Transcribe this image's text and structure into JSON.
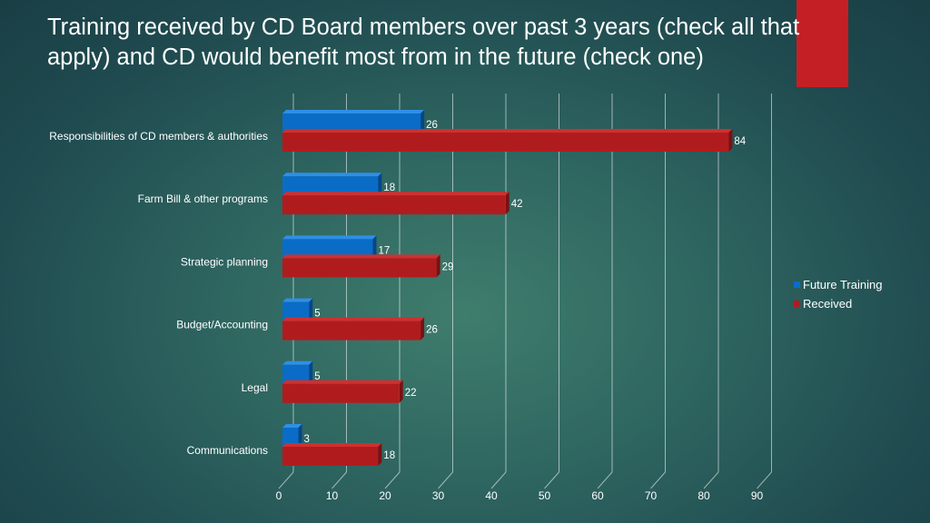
{
  "title_line1": "Training received by CD Board members over past 3 years (check all that",
  "title_line2": "apply) and CD would benefit most from in the future (check one)",
  "colors": {
    "future": "#0a6cc6",
    "future_top": "#2e8fe6",
    "future_side": "#05468a",
    "received": "#b01c1e",
    "received_top": "#cf3030",
    "received_side": "#7c1012",
    "accent": "#c41f24"
  },
  "chart_data": {
    "type": "bar",
    "orientation": "horizontal",
    "style": "3d-clustered",
    "title": "Training received by CD Board members over past 3 years (check all that apply) and CD would benefit most from in the future (check one)",
    "categories": [
      "Responsibilities of CD members & authorities",
      "Farm Bill & other programs",
      "Strategic planning",
      "Budget/Accounting",
      "Legal",
      "Communications"
    ],
    "series": [
      {
        "name": "Future Training",
        "values": [
          26,
          18,
          17,
          5,
          5,
          3
        ]
      },
      {
        "name": "Received",
        "values": [
          84,
          42,
          29,
          26,
          22,
          18
        ]
      }
    ],
    "xlim": [
      0,
      90
    ],
    "xticks": [
      0,
      10,
      20,
      30,
      40,
      50,
      60,
      70,
      80,
      90
    ],
    "grid": true,
    "legend_position": "right"
  }
}
